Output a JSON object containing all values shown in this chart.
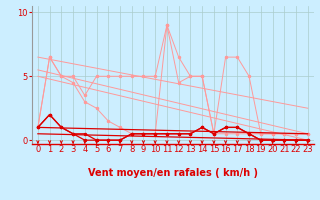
{
  "title": "",
  "xlabel": "Vent moyen/en rafales ( km/h )",
  "background_color": "#cceeff",
  "grid_color": "#aacccc",
  "xlim": [
    -0.5,
    23.5
  ],
  "ylim": [
    -0.3,
    10.5
  ],
  "yticks": [
    0,
    5,
    10
  ],
  "xticks": [
    0,
    1,
    2,
    3,
    4,
    5,
    6,
    7,
    8,
    9,
    10,
    11,
    12,
    13,
    14,
    15,
    16,
    17,
    18,
    19,
    20,
    21,
    22,
    23
  ],
  "series_light": {
    "color": "#ff9999",
    "x": [
      0,
      1,
      2,
      3,
      4,
      5,
      6,
      7,
      8,
      9,
      10,
      11,
      12,
      13,
      14,
      15,
      16,
      17,
      18,
      19,
      20,
      21,
      22,
      23
    ],
    "y": [
      1.0,
      6.5,
      5.0,
      5.0,
      3.5,
      5.0,
      5.0,
      5.0,
      5.0,
      5.0,
      5.0,
      9.0,
      6.5,
      5.0,
      5.0,
      0.5,
      6.5,
      6.5,
      5.0,
      0.5,
      0.5,
      0.5,
      0.5,
      0.5
    ]
  },
  "series_light2": {
    "color": "#ff9999",
    "x": [
      0,
      1,
      2,
      3,
      4,
      5,
      6,
      7,
      8,
      9,
      10,
      11,
      12,
      13,
      14,
      15,
      16,
      17,
      18,
      19,
      20,
      21,
      22,
      23
    ],
    "y": [
      1.0,
      6.5,
      5.0,
      4.5,
      3.0,
      2.5,
      1.5,
      1.0,
      0.5,
      0.5,
      0.5,
      9.0,
      4.5,
      5.0,
      5.0,
      0.5,
      0.5,
      0.5,
      0.5,
      0.5,
      0.5,
      0.5,
      0.5,
      0.5
    ]
  },
  "trend_light1": {
    "color": "#ff9999",
    "x": [
      0,
      23
    ],
    "y": [
      6.5,
      2.5
    ]
  },
  "trend_light2": {
    "color": "#ff9999",
    "x": [
      0,
      23
    ],
    "y": [
      5.5,
      0.5
    ]
  },
  "trend_light3": {
    "color": "#ff9999",
    "x": [
      0,
      23
    ],
    "y": [
      5.0,
      0.0
    ]
  },
  "series_dark": {
    "color": "#dd0000",
    "x": [
      0,
      1,
      2,
      3,
      4,
      5,
      6,
      7,
      8,
      9,
      10,
      11,
      12,
      13,
      14,
      15,
      16,
      17,
      18,
      19,
      20,
      21,
      22,
      23
    ],
    "y": [
      1.0,
      2.0,
      1.0,
      0.5,
      0.5,
      0.0,
      0.0,
      0.0,
      0.5,
      0.5,
      0.5,
      0.5,
      0.5,
      0.5,
      1.0,
      0.5,
      1.0,
      1.0,
      0.5,
      0.0,
      0.0,
      0.0,
      0.0,
      0.0
    ]
  },
  "series_dark2": {
    "color": "#dd0000",
    "x": [
      0,
      1,
      2,
      3,
      4,
      5,
      6,
      7,
      8,
      9,
      10,
      11,
      12,
      13,
      14,
      15,
      16,
      17,
      18,
      19,
      20,
      21,
      22,
      23
    ],
    "y": [
      1.0,
      2.0,
      1.0,
      0.5,
      0.0,
      0.0,
      0.0,
      0.0,
      0.5,
      0.5,
      0.5,
      0.5,
      0.5,
      0.5,
      1.0,
      0.5,
      1.0,
      1.0,
      0.5,
      0.0,
      0.0,
      0.0,
      0.0,
      0.0
    ]
  },
  "trend_dark1": {
    "color": "#dd0000",
    "x": [
      0,
      23
    ],
    "y": [
      1.0,
      0.5
    ]
  },
  "trend_dark2": {
    "color": "#dd0000",
    "x": [
      0,
      23
    ],
    "y": [
      0.5,
      0.0
    ]
  },
  "arrow_color": "#dd0000",
  "xlabel_color": "#dd0000",
  "xlabel_fontsize": 7,
  "tick_fontsize": 6,
  "ytick_color": "#dd0000",
  "xtick_color": "#dd0000"
}
